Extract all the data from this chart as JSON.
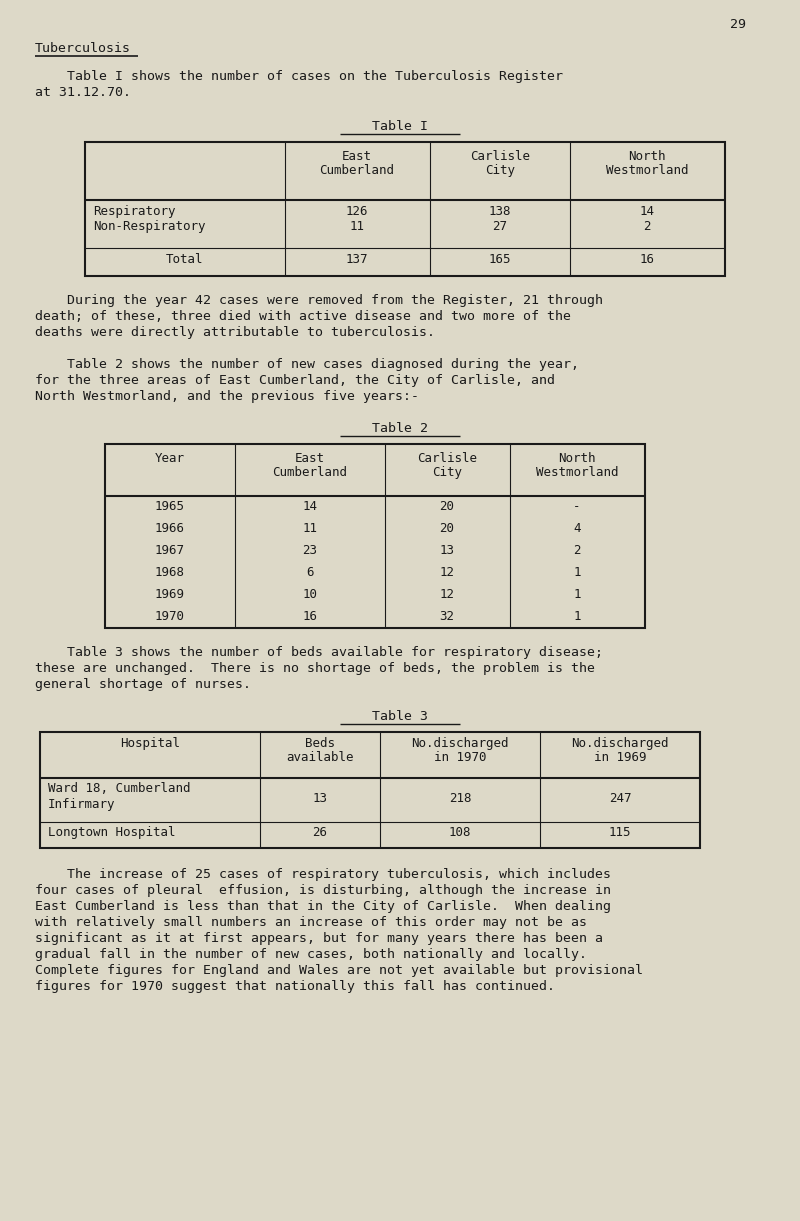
{
  "page_number": "29",
  "bg_color": "#ddd9c8",
  "text_color": "#1a1a1a",
  "heading": "Tuberculosis",
  "intro_line1": "    Table I shows the number of cases on the Tuberculosis Register",
  "intro_line2": "at 31.12.70.",
  "table1_title": "Table I",
  "table1_col_headers": [
    "East\nCumberland",
    "Carlisle\nCity",
    "North\nWestmorland"
  ],
  "table1_row_labels": [
    "Respiratory",
    "Non-Respiratory",
    "Total"
  ],
  "table1_data": [
    [
      "126",
      "138",
      "14"
    ],
    [
      "11",
      "27",
      "2"
    ],
    [
      "137",
      "165",
      "16"
    ]
  ],
  "para1_lines": [
    "    During the year 42 cases were removed from the Register, 21 through",
    "death; of these, three died with active disease and two more of the",
    "deaths were directly attributable to tuberculosis."
  ],
  "table2_intro_lines": [
    "    Table 2 shows the number of new cases diagnosed during the year,",
    "for the three areas of East Cumberland, the City of Carlisle, and",
    "North Westmorland, and the previous five years:-"
  ],
  "table2_title": "Table 2",
  "table2_col_headers": [
    "Year",
    "East\nCumberland",
    "Carlisle\nCity",
    "North\nWestmorland"
  ],
  "table2_data": [
    [
      "1965",
      "14",
      "20",
      "-"
    ],
    [
      "1966",
      "11",
      "20",
      "4"
    ],
    [
      "1967",
      "23",
      "13",
      "2"
    ],
    [
      "1968",
      "6",
      "12",
      "1"
    ],
    [
      "1969",
      "10",
      "12",
      "1"
    ],
    [
      "1970",
      "16",
      "32",
      "1"
    ]
  ],
  "table3_intro_lines": [
    "    Table 3 shows the number of beds available for respiratory disease;",
    "these are unchanged.  There is no shortage of beds, the problem is the",
    "general shortage of nurses."
  ],
  "table3_title": "Table 3",
  "table3_col_headers": [
    "Hospital",
    "Beds\navailable",
    "No.discharged\nin 1970",
    "No.discharged\nin 1969"
  ],
  "table3_data": [
    [
      "Ward 18, Cumberland\nInfirmary",
      "13",
      "218",
      "247"
    ],
    [
      "Longtown Hospital",
      "26",
      "108",
      "115"
    ]
  ],
  "closing_lines": [
    "    The increase of 25 cases of respiratory tuberculosis, which includes",
    "four cases of pleural  effusion, is disturbing, although the increase in",
    "East Cumberland is less than that in the City of Carlisle.  When dealing",
    "with relatively small numbers an increase of this order may not be as",
    "significant as it at first appears, but for many years there has been a",
    "gradual fall in the number of new cases, both nationally and locally.",
    "Complete figures for England and Wales are not yet available but provisional",
    "figures for 1970 suggest that nationally this fall has continued."
  ],
  "font_size": 9.5,
  "table_font_size": 9.0
}
